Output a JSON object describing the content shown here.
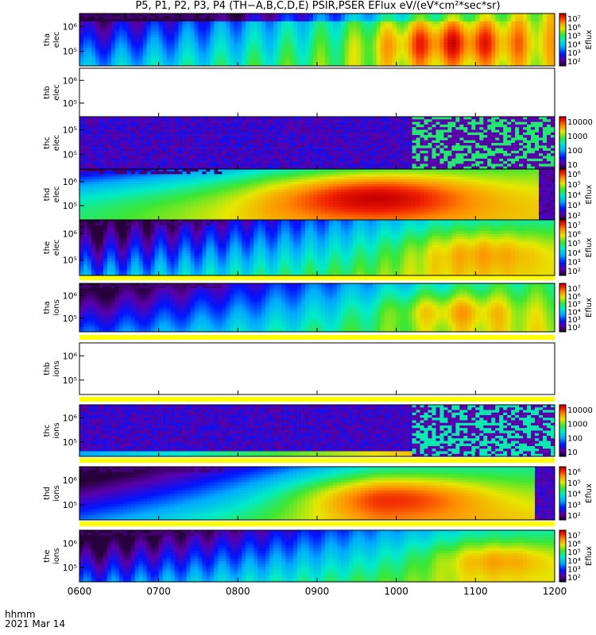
{
  "title": "P5, P1, P2, P3, P4 (TH−A,B,C,D,E) PSIR,PSER EFlux eV/(eV*cm²*sec*sr)",
  "footer": {
    "line1": "hhmm",
    "line2": "2021 Mar 14"
  },
  "chart_data": {
    "type": "heatmap",
    "x_axis": {
      "range": [
        "0600",
        "1200"
      ],
      "tick_labels": [
        "0600",
        "0700",
        "0800",
        "0900",
        "1000",
        "1100",
        "1200"
      ]
    },
    "y_scale": "log",
    "panels": [
      {
        "probe": "tha",
        "species": "elec",
        "has_data": true,
        "pattern": "elec_a",
        "y_ticks": [
          "10⁶",
          "10⁵"
        ],
        "colorbar": {
          "label": "Eflux",
          "ticks": [
            "10⁷",
            "10⁶",
            "10⁵",
            "10⁴",
            "10³",
            "10²"
          ]
        }
      },
      {
        "probe": "thb",
        "species": "elec",
        "has_data": false,
        "pattern": "empty",
        "y_ticks": [
          "10⁶",
          "10⁵"
        ],
        "colorbar": null
      },
      {
        "probe": "thc",
        "species": "elec",
        "has_data": true,
        "pattern": "noise",
        "y_ticks": [
          "10⁵",
          "10⁵"
        ],
        "colorbar": {
          "label": "",
          "ticks": [
            "10000",
            "1000",
            "100",
            "10"
          ]
        }
      },
      {
        "probe": "thd",
        "species": "elec",
        "has_data": true,
        "pattern": "elec_d",
        "y_ticks": [
          "10⁶",
          "10⁵"
        ],
        "colorbar": {
          "label": "Eflux",
          "ticks": [
            "10⁶",
            "10⁵",
            "10⁴",
            "10³",
            "10²"
          ]
        }
      },
      {
        "probe": "the",
        "species": "elec",
        "has_data": true,
        "pattern": "elec_e",
        "y_ticks": [
          "10⁶",
          "10⁵"
        ],
        "colorbar": {
          "label": "Eflux",
          "ticks": [
            "10⁷",
            "10⁶",
            "10⁵",
            "10⁴",
            "10³",
            "10²"
          ]
        }
      },
      {
        "probe": "tha",
        "species": "ions",
        "has_data": true,
        "pattern": "ions_a",
        "y_ticks": [
          "10⁶",
          "10⁵"
        ],
        "colorbar": {
          "label": "Eflux",
          "ticks": [
            "10⁷",
            "10⁶",
            "10⁵",
            "10⁴",
            "10³",
            "10²"
          ]
        }
      },
      {
        "probe": "thb",
        "species": "ions",
        "has_data": false,
        "pattern": "empty",
        "y_ticks": [
          "10⁶",
          "10⁵"
        ],
        "colorbar": null
      },
      {
        "probe": "thc",
        "species": "ions",
        "has_data": true,
        "pattern": "noise_ion",
        "y_ticks": [
          "10⁶",
          "10⁵"
        ],
        "colorbar": {
          "label": "",
          "ticks": [
            "10000",
            "1000",
            "100",
            "10"
          ]
        }
      },
      {
        "probe": "thd",
        "species": "ions",
        "has_data": true,
        "pattern": "ions_d",
        "y_ticks": [
          "10⁶",
          "10⁵"
        ],
        "colorbar": {
          "label": "Eflux",
          "ticks": [
            "10⁶",
            "10⁵",
            "10⁴",
            "10³",
            "10²"
          ]
        }
      },
      {
        "probe": "the",
        "species": "ions",
        "has_data": true,
        "pattern": "ions_e",
        "y_ticks": [
          "10⁶",
          "10⁵"
        ],
        "colorbar": {
          "label": "Eflux",
          "ticks": [
            "10⁷",
            "10⁶",
            "10⁵",
            "10⁴",
            "10³",
            "10²"
          ]
        }
      }
    ]
  }
}
